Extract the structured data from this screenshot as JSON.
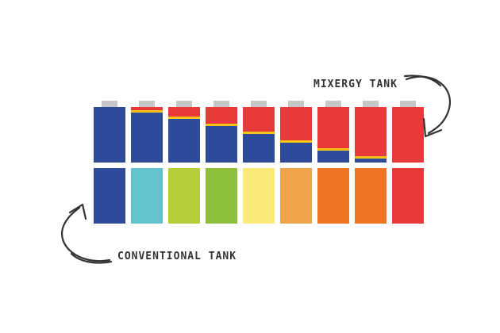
{
  "labels": {
    "mixergy": "MIXERGY TANK",
    "conventional": "CONVENTIONAL TANK"
  }
}
